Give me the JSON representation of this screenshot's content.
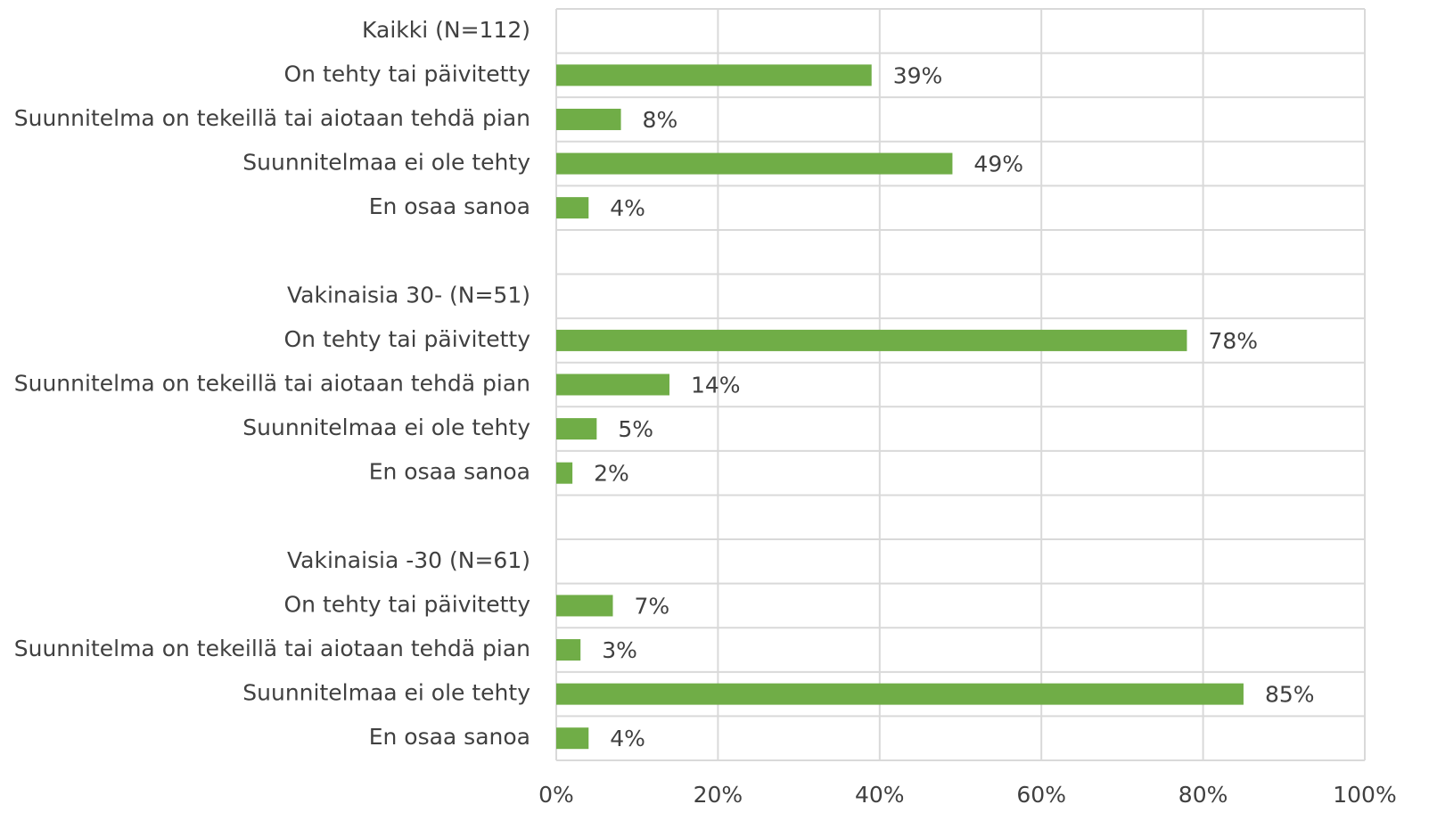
{
  "chart_data": {
    "type": "bar",
    "orientation": "horizontal",
    "categories": [
      "Kaikki (N=112)",
      "On tehty tai päivitetty",
      "Suunnitelma on tekeillä tai aiotaan tehdä pian",
      "Suunnitelmaa ei ole tehty",
      "En osaa sanoa",
      null,
      "Vakinaisia 30-  (N=51)",
      "On tehty tai päivitetty",
      "Suunnitelma on tekeillä tai aiotaan tehdä pian",
      "Suunnitelmaa ei ole tehty",
      "En osaa sanoa",
      null,
      "Vakinaisia -30 (N=61)",
      "On tehty tai päivitetty",
      "Suunnitelma on tekeillä tai aiotaan tehdä pian",
      "Suunnitelmaa ei ole tehty",
      "En osaa sanoa"
    ],
    "values": [
      null,
      39,
      8,
      49,
      4,
      null,
      null,
      78,
      14,
      5,
      2,
      null,
      null,
      7,
      3,
      85,
      4
    ],
    "value_labels": [
      null,
      "39%",
      "8%",
      "49%",
      "4%",
      null,
      null,
      "78%",
      "14%",
      "5%",
      "2%",
      null,
      null,
      "7%",
      "3%",
      "85%",
      "4%"
    ],
    "color": "#70ad47",
    "xlim": [
      0,
      100
    ],
    "xticks": [
      {
        "value": 0,
        "label": "0%"
      },
      {
        "value": 20,
        "label": "20%"
      },
      {
        "value": 40,
        "label": "40%"
      },
      {
        "value": 60,
        "label": "60%"
      },
      {
        "value": 80,
        "label": "80%"
      },
      {
        "value": 100,
        "label": "100%"
      }
    ],
    "grid": true
  }
}
